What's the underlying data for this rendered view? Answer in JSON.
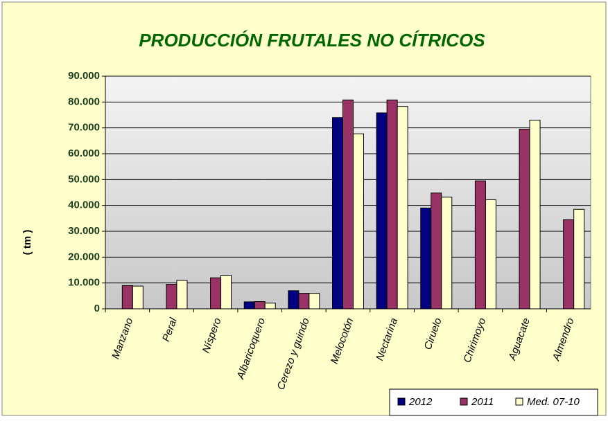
{
  "chart_data": {
    "type": "bar",
    "title": "PRODUCCIÓN FRUTALES NO CÍTRICOS",
    "y_label": "( tm )",
    "categories": [
      "Manzano",
      "Peral",
      "Níspero",
      "Albaricoquero",
      "Cerezo y guindo",
      "Melocotón",
      "Nectarina",
      "Ciruelo",
      "Chirimoyo",
      "Aguacate",
      "Almendro"
    ],
    "series": [
      {
        "name": "2012",
        "color": "#000080",
        "values": [
          null,
          null,
          null,
          2700,
          7000,
          74000,
          75800,
          39000,
          null,
          null,
          null
        ]
      },
      {
        "name": "2011",
        "color": "#993366",
        "values": [
          9000,
          9500,
          12000,
          2800,
          6000,
          80800,
          80800,
          44800,
          49500,
          69500,
          34500
        ]
      },
      {
        "name": "Med. 07-10",
        "color": "#ffffcc",
        "values": [
          8800,
          11000,
          13000,
          2200,
          6000,
          67700,
          78300,
          43200,
          42200,
          73000,
          38500
        ]
      }
    ],
    "ylim": [
      0,
      90000
    ],
    "yticks": [
      0,
      {
        "value": 10000,
        "label": "10.000"
      },
      {
        "value": 20000,
        "label": "20.000"
      },
      {
        "value": 30000,
        "label": "30.000"
      },
      {
        "value": 40000,
        "label": "40.000"
      },
      {
        "value": 50000,
        "label": "50.000"
      },
      {
        "value": 60000,
        "label": "60.000"
      },
      {
        "value": 70000,
        "label": "70.000"
      },
      {
        "value": 80000,
        "label": "80.000"
      },
      {
        "value": 90000,
        "label": "90.000"
      }
    ],
    "grid": true,
    "legend": "bottom-right"
  }
}
